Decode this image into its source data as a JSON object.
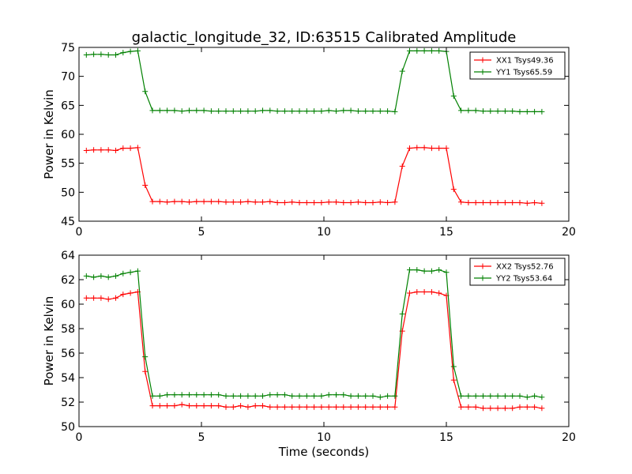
{
  "figure": {
    "title": "galactic_longitude_32, ID:63515 Calibrated Amplitude"
  },
  "chart_data": [
    {
      "type": "line",
      "title": "galactic_longitude_32, ID:63515 Calibrated Amplitude",
      "xlabel": "",
      "ylabel": "Power in Kelvin",
      "xlim": [
        0,
        20
      ],
      "ylim": [
        45,
        75
      ],
      "xticks": [
        0,
        5,
        10,
        15,
        20
      ],
      "yticks": [
        45,
        50,
        55,
        60,
        65,
        70,
        75
      ],
      "legend_position": "top-right",
      "grid": false,
      "x": [
        0.3,
        0.6,
        0.9,
        1.2,
        1.5,
        1.8,
        2.1,
        2.4,
        2.7,
        3.0,
        3.3,
        3.6,
        3.9,
        4.2,
        4.5,
        4.8,
        5.1,
        5.4,
        5.7,
        6.0,
        6.3,
        6.6,
        6.9,
        7.2,
        7.5,
        7.8,
        8.1,
        8.4,
        8.7,
        9.0,
        9.3,
        9.6,
        9.9,
        10.2,
        10.5,
        10.8,
        11.1,
        11.4,
        11.7,
        12.0,
        12.3,
        12.6,
        12.9,
        13.2,
        13.5,
        13.8,
        14.1,
        14.4,
        14.7,
        15.0,
        15.3,
        15.6,
        15.9,
        16.2,
        16.5,
        16.8,
        17.1,
        17.4,
        17.7,
        18.0,
        18.3,
        18.6,
        18.9
      ],
      "series": [
        {
          "name": "XX1 Tsys49.36",
          "color": "#ff0000",
          "values": [
            57.2,
            57.3,
            57.3,
            57.3,
            57.2,
            57.6,
            57.6,
            57.7,
            51.2,
            48.4,
            48.4,
            48.3,
            48.4,
            48.4,
            48.3,
            48.4,
            48.4,
            48.4,
            48.4,
            48.3,
            48.3,
            48.3,
            48.4,
            48.3,
            48.3,
            48.4,
            48.2,
            48.2,
            48.3,
            48.2,
            48.2,
            48.2,
            48.2,
            48.3,
            48.3,
            48.2,
            48.2,
            48.3,
            48.2,
            48.2,
            48.3,
            48.2,
            48.3,
            54.5,
            57.6,
            57.7,
            57.7,
            57.6,
            57.6,
            57.6,
            50.5,
            48.3,
            48.2,
            48.2,
            48.2,
            48.2,
            48.2,
            48.2,
            48.2,
            48.2,
            48.1,
            48.2,
            48.1
          ]
        },
        {
          "name": "YY1 Tsys65.59",
          "color": "#008000",
          "values": [
            73.7,
            73.8,
            73.8,
            73.7,
            73.7,
            74.1,
            74.3,
            74.4,
            67.4,
            64.1,
            64.1,
            64.1,
            64.1,
            64.0,
            64.1,
            64.1,
            64.1,
            64.0,
            64.0,
            64.0,
            64.0,
            64.0,
            64.0,
            64.0,
            64.1,
            64.1,
            64.0,
            64.0,
            64.0,
            64.0,
            64.0,
            64.0,
            64.0,
            64.1,
            64.0,
            64.1,
            64.1,
            64.0,
            64.0,
            64.0,
            64.0,
            64.0,
            63.9,
            70.9,
            74.4,
            74.4,
            74.4,
            74.4,
            74.4,
            74.3,
            66.6,
            64.1,
            64.1,
            64.1,
            64.0,
            64.0,
            64.0,
            64.0,
            64.0,
            63.9,
            63.9,
            63.9,
            63.9
          ]
        }
      ]
    },
    {
      "type": "line",
      "title": "",
      "xlabel": "Time (seconds)",
      "ylabel": "Power in Kelvin",
      "xlim": [
        0,
        20
      ],
      "ylim": [
        50,
        64
      ],
      "xticks": [
        0,
        5,
        10,
        15,
        20
      ],
      "yticks": [
        50,
        52,
        54,
        56,
        58,
        60,
        62,
        64
      ],
      "legend_position": "top-right",
      "grid": false,
      "x": [
        0.3,
        0.6,
        0.9,
        1.2,
        1.5,
        1.8,
        2.1,
        2.4,
        2.7,
        3.0,
        3.3,
        3.6,
        3.9,
        4.2,
        4.5,
        4.8,
        5.1,
        5.4,
        5.7,
        6.0,
        6.3,
        6.6,
        6.9,
        7.2,
        7.5,
        7.8,
        8.1,
        8.4,
        8.7,
        9.0,
        9.3,
        9.6,
        9.9,
        10.2,
        10.5,
        10.8,
        11.1,
        11.4,
        11.7,
        12.0,
        12.3,
        12.6,
        12.9,
        13.2,
        13.5,
        13.8,
        14.1,
        14.4,
        14.7,
        15.0,
        15.3,
        15.6,
        15.9,
        16.2,
        16.5,
        16.8,
        17.1,
        17.4,
        17.7,
        18.0,
        18.3,
        18.6,
        18.9
      ],
      "series": [
        {
          "name": "XX2 Tsys52.76",
          "color": "#ff0000",
          "values": [
            60.5,
            60.5,
            60.5,
            60.4,
            60.5,
            60.8,
            60.9,
            61.0,
            54.5,
            51.7,
            51.7,
            51.7,
            51.7,
            51.8,
            51.7,
            51.7,
            51.7,
            51.7,
            51.7,
            51.6,
            51.6,
            51.7,
            51.6,
            51.7,
            51.7,
            51.6,
            51.6,
            51.6,
            51.6,
            51.6,
            51.6,
            51.6,
            51.6,
            51.6,
            51.6,
            51.6,
            51.6,
            51.6,
            51.6,
            51.6,
            51.6,
            51.6,
            51.6,
            57.8,
            60.9,
            61.0,
            61.0,
            61.0,
            60.9,
            60.7,
            53.8,
            51.6,
            51.6,
            51.6,
            51.5,
            51.5,
            51.5,
            51.5,
            51.5,
            51.6,
            51.6,
            51.6,
            51.5
          ]
        },
        {
          "name": "YY2 Tsys53.64",
          "color": "#008000",
          "values": [
            62.3,
            62.2,
            62.3,
            62.2,
            62.3,
            62.5,
            62.6,
            62.7,
            55.7,
            52.5,
            52.5,
            52.6,
            52.6,
            52.6,
            52.6,
            52.6,
            52.6,
            52.6,
            52.6,
            52.5,
            52.5,
            52.5,
            52.5,
            52.5,
            52.5,
            52.6,
            52.6,
            52.6,
            52.5,
            52.5,
            52.5,
            52.5,
            52.5,
            52.6,
            52.6,
            52.6,
            52.5,
            52.5,
            52.5,
            52.5,
            52.4,
            52.5,
            52.5,
            59.2,
            62.8,
            62.8,
            62.7,
            62.7,
            62.8,
            62.6,
            54.9,
            52.5,
            52.5,
            52.5,
            52.5,
            52.5,
            52.5,
            52.5,
            52.5,
            52.5,
            52.4,
            52.5,
            52.4
          ]
        }
      ]
    }
  ]
}
